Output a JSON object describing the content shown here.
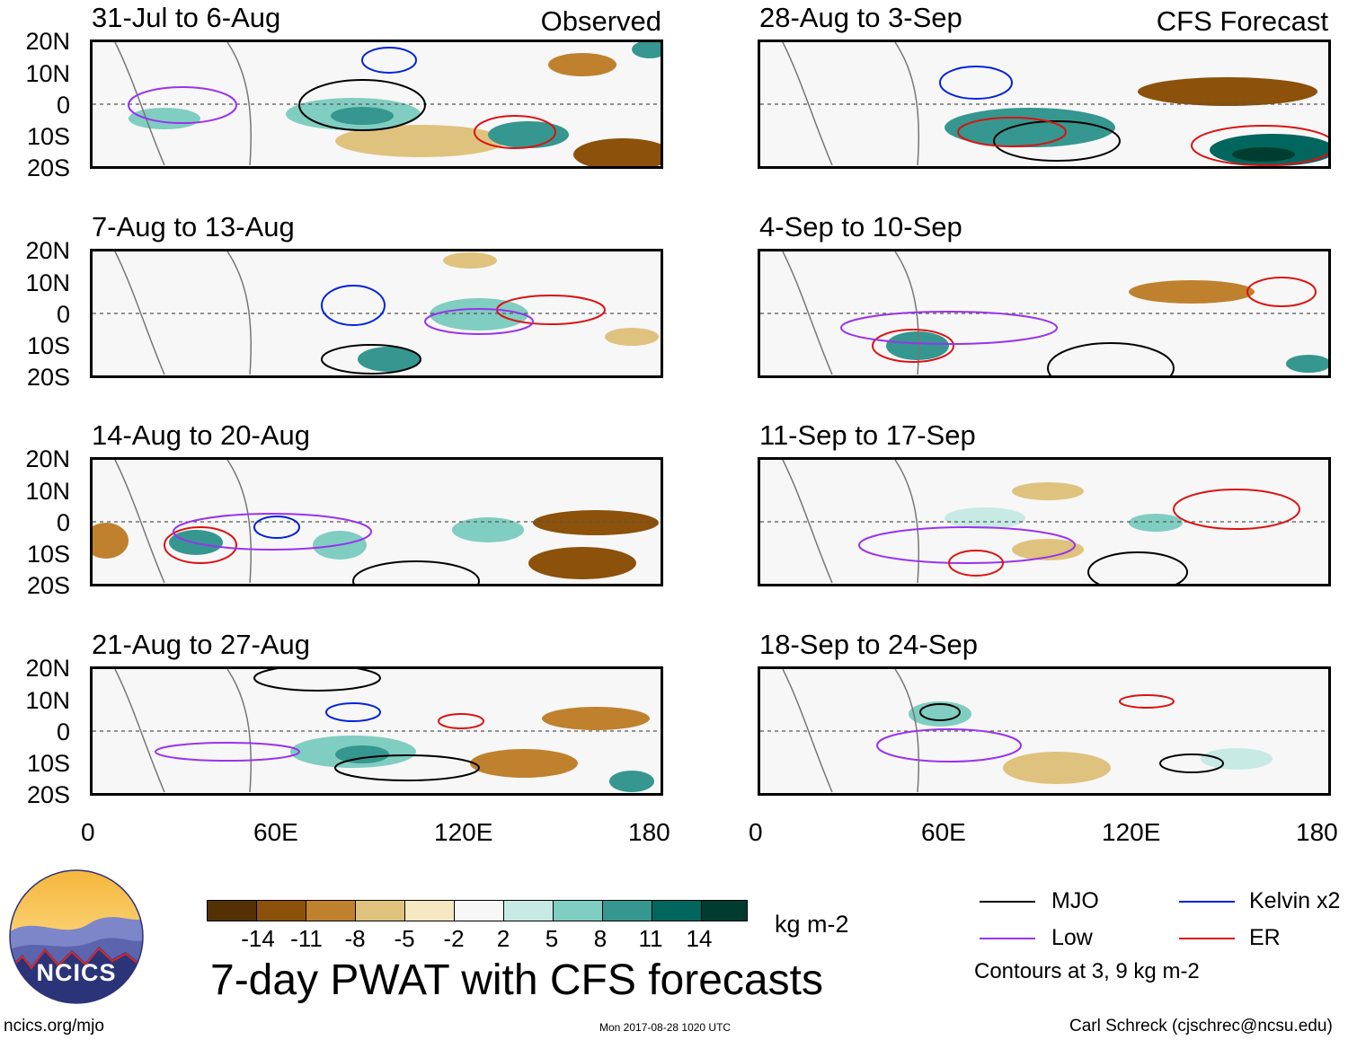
{
  "panels": [
    {
      "title": "31-Jul to 6-Aug",
      "tag": "Observed"
    },
    {
      "title": "7-Aug to 13-Aug",
      "tag": ""
    },
    {
      "title": "14-Aug to 20-Aug",
      "tag": ""
    },
    {
      "title": "21-Aug to 27-Aug",
      "tag": ""
    },
    {
      "title": "28-Aug to 3-Sep",
      "tag": "CFS Forecast"
    },
    {
      "title": "4-Sep to 10-Sep",
      "tag": ""
    },
    {
      "title": "11-Sep to 17-Sep",
      "tag": ""
    },
    {
      "title": "18-Sep to 24-Sep",
      "tag": ""
    }
  ],
  "lat_labels": [
    "20N",
    "10N",
    "0",
    "10S",
    "20S"
  ],
  "lon_labels": [
    "0",
    "60E",
    "120E",
    "180"
  ],
  "colorbar": {
    "units": "kg m-2",
    "labels": [
      "-14",
      "-11",
      "-8",
      "-5",
      "-2",
      "2",
      "5",
      "8",
      "11",
      "14"
    ],
    "colors": [
      "#543005",
      "#8c510a",
      "#bf812d",
      "#dfc27d",
      "#f6e8c3",
      "#f7f7f7",
      "#c7eae5",
      "#80cdc1",
      "#35978f",
      "#01665e",
      "#003c30"
    ]
  },
  "title": "7-day PWAT with CFS forecasts",
  "legend": {
    "items": [
      {
        "label": "MJO",
        "color": "#000000"
      },
      {
        "label": "Kelvin x2",
        "color": "#0022dd"
      },
      {
        "label": "Low",
        "color": "#9933ee"
      },
      {
        "label": "ER",
        "color": "#dd1111"
      }
    ],
    "note": "Contours at 3, 9 kg m-2"
  },
  "logo": {
    "text": "NCICS"
  },
  "footer": {
    "url": "ncics.org/mjo",
    "timestamp": "Mon 2017-08-28 1020 UTC",
    "credit": "Carl Schreck (cjschrec@ncsu.edu)"
  }
}
